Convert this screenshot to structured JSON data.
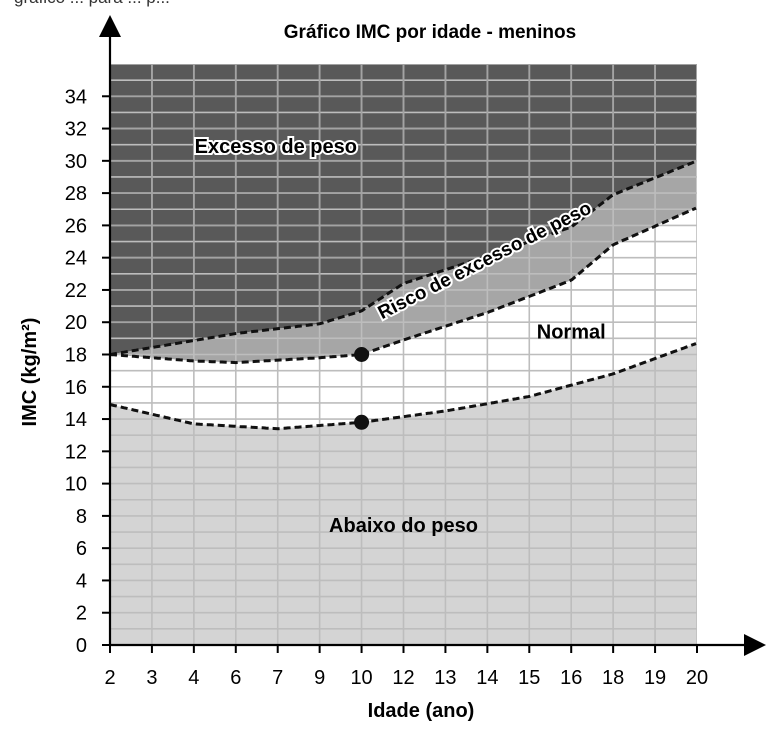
{
  "top_fragment": "gráfico ... para ... p...",
  "chart_data": {
    "type": "area",
    "title": "Gráfico IMC por idade - meninos",
    "xlabel": "Idade (ano)",
    "ylabel": "IMC (kg/m²)",
    "x_ticks": [
      "2",
      "3",
      "4",
      "6",
      "7",
      "9",
      "10",
      "12",
      "13",
      "14",
      "15",
      "16",
      "18",
      "19",
      "20"
    ],
    "y_ticks": [
      0,
      2,
      4,
      6,
      8,
      10,
      12,
      14,
      16,
      18,
      20,
      22,
      24,
      26,
      28,
      30,
      32,
      34
    ],
    "ylim": [
      0,
      36
    ],
    "grid": true,
    "curves": [
      {
        "x": [
          "2",
          "4",
          "7",
          "9",
          "10",
          "13",
          "15",
          "18",
          "20"
        ],
        "y": [
          14.9,
          13.7,
          13.4,
          13.6,
          13.8,
          14.5,
          15.4,
          16.8,
          18.7
        ]
      },
      {
        "x": [
          "2",
          "4",
          "6",
          "9",
          "10",
          "12",
          "14",
          "16",
          "18",
          "20"
        ],
        "y": [
          18.0,
          17.6,
          17.5,
          17.8,
          18.0,
          18.9,
          20.6,
          22.6,
          24.8,
          27.1
        ]
      },
      {
        "x": [
          "2",
          "6",
          "9",
          "10",
          "12",
          "14",
          "16",
          "18",
          "20"
        ],
        "y": [
          18.0,
          19.3,
          19.9,
          20.7,
          22.4,
          24.1,
          25.9,
          27.9,
          30.0
        ]
      }
    ],
    "points": [
      {
        "x": "10",
        "y": 18.0
      },
      {
        "x": "10",
        "y": 13.8
      }
    ],
    "regions": [
      {
        "name": "Excesso de peso",
        "color": "#595959",
        "label_at": {
          "x": "6",
          "y": 30.5
        }
      },
      {
        "name": "Risco de excesso de peso",
        "color": "#a6a6a6",
        "label_at": {
          "x": "14",
          "y": 23.5
        }
      },
      {
        "name": "Normal",
        "color": "#ffffff",
        "label_at": {
          "x": "16",
          "y": 19
        }
      },
      {
        "name": "Abaixo do peso",
        "color": "#d4d4d4",
        "label_at": {
          "x": "12",
          "y": 7
        }
      }
    ],
    "colors": {
      "curve": "#111111",
      "grid_on_dark": "#a3a3a3",
      "grid_on_light": "#bdbdbd",
      "axis": "#000000"
    }
  }
}
